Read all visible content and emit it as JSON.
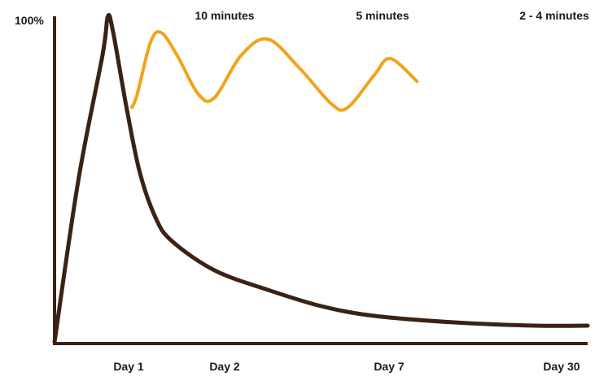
{
  "chart_data": {
    "type": "line",
    "title": "",
    "xlabel": "",
    "ylabel": "",
    "y_max_label": "100%",
    "x_tick_labels": [
      "Day 1",
      "Day 2",
      "Day 7",
      "Day 30"
    ],
    "annotations": [
      "10 minutes",
      "5 minutes",
      "2 - 4 minutes"
    ],
    "grid": false,
    "legend": "none",
    "colors": {
      "decay": "#3a2314",
      "review": "#f2a31b",
      "axis": "#3a2314"
    },
    "series": [
      {
        "points": [
          [
            0,
            0
          ],
          [
            0.45,
            50
          ],
          [
            0.9,
            88
          ],
          [
            1.0,
            100
          ],
          [
            1.1,
            95
          ],
          [
            1.35,
            72
          ],
          [
            1.6,
            52
          ],
          [
            1.9,
            38
          ],
          [
            2.2,
            31
          ],
          [
            3.0,
            22
          ],
          [
            4.0,
            16
          ],
          [
            5.0,
            11
          ],
          [
            6.0,
            8
          ],
          [
            7.5,
            6
          ],
          [
            9.0,
            5
          ],
          [
            10.0,
            5
          ]
        ]
      },
      {
        "points": [
          [
            1.45,
            72
          ],
          [
            1.55,
            76
          ],
          [
            1.8,
            92
          ],
          [
            2.0,
            95
          ],
          [
            2.3,
            88
          ],
          [
            2.7,
            76
          ],
          [
            3.0,
            75
          ],
          [
            3.5,
            88
          ],
          [
            4.0,
            93
          ],
          [
            4.6,
            84
          ],
          [
            5.2,
            73
          ],
          [
            5.5,
            72
          ],
          [
            6.0,
            82
          ],
          [
            6.3,
            87
          ],
          [
            6.8,
            80
          ]
        ]
      }
    ]
  }
}
